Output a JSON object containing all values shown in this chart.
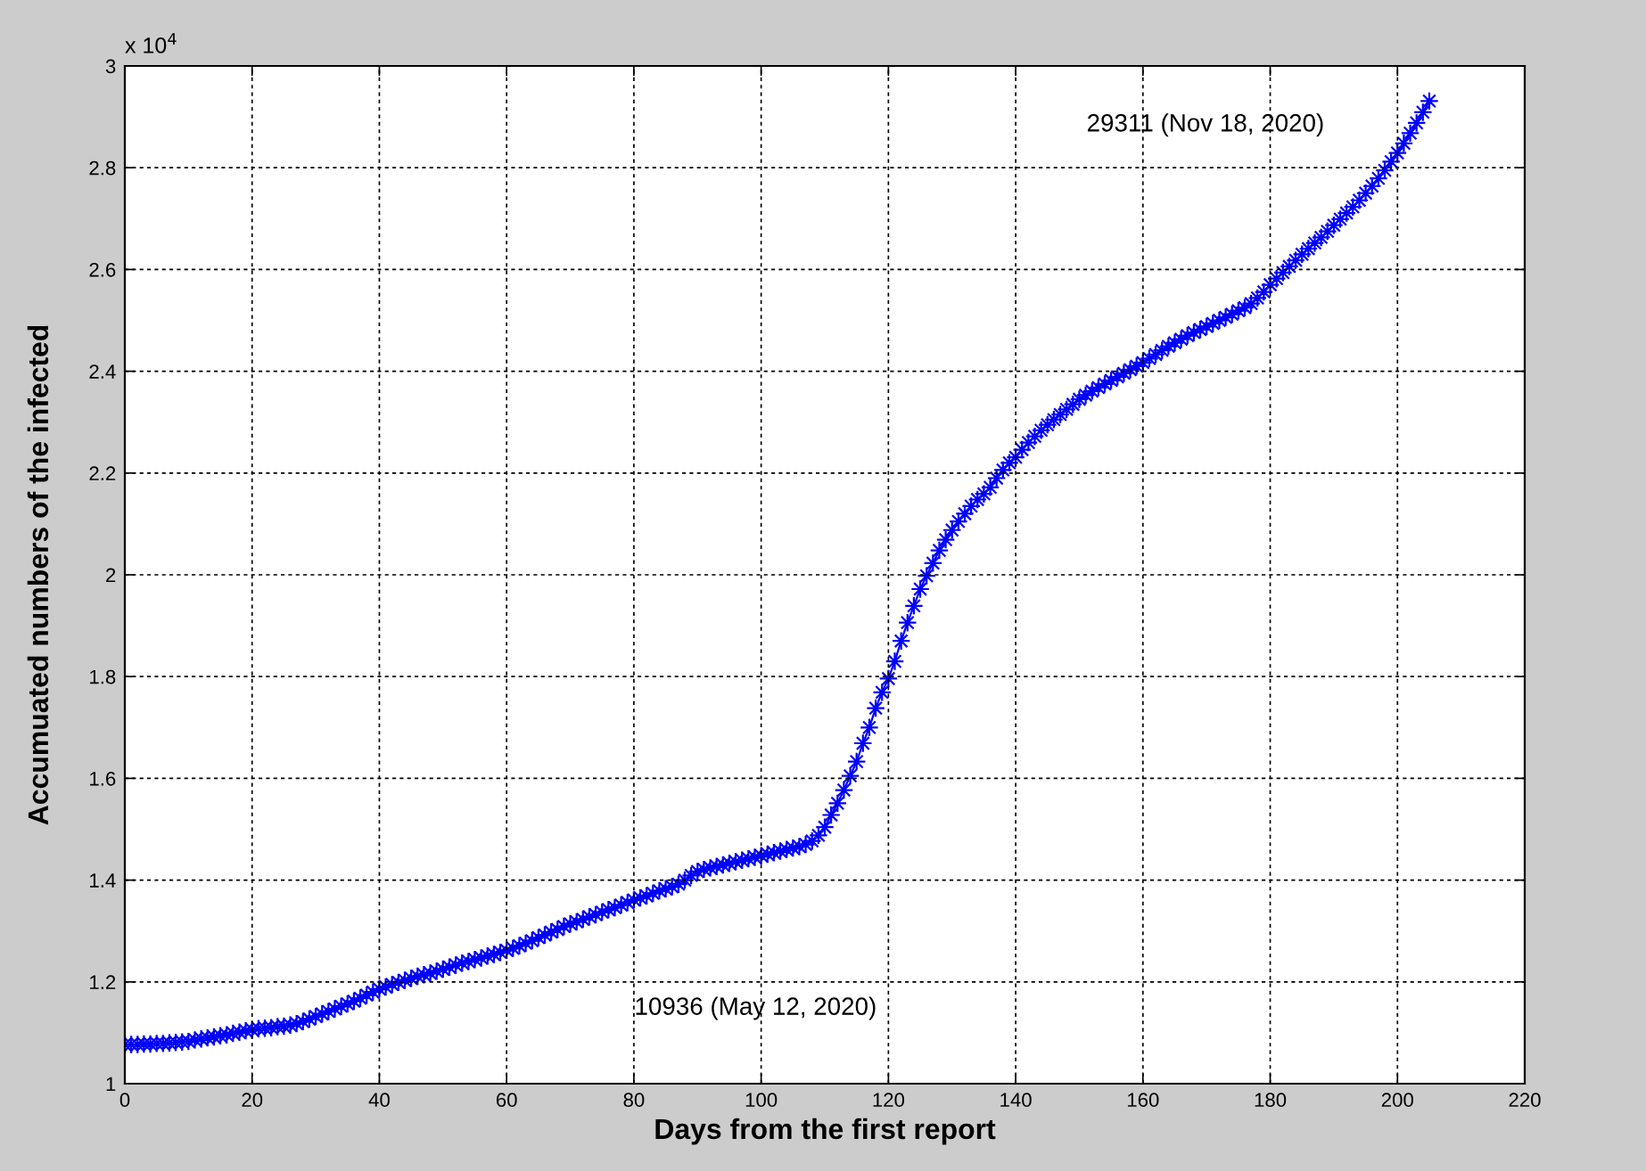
{
  "chart_data": {
    "type": "line",
    "xlabel": "Days from the first report",
    "ylabel": "Accumuated numbers of the infected",
    "annotations": [
      "x 10$^{4}$",
      "29311 (Nov 18, 2020)",
      "10936 (May 12, 2020)"
    ],
    "x": [
      0,
      1,
      2,
      3,
      4,
      5,
      6,
      7,
      8,
      9,
      10,
      11,
      12,
      13,
      14,
      15,
      16,
      17,
      18,
      19,
      20,
      21,
      22,
      23,
      24,
      25,
      26,
      27,
      28,
      29,
      30,
      31,
      32,
      33,
      34,
      35,
      36,
      37,
      38,
      39,
      40,
      41,
      42,
      43,
      44,
      45,
      46,
      47,
      48,
      49,
      50,
      51,
      52,
      53,
      54,
      55,
      56,
      57,
      58,
      59,
      60,
      61,
      62,
      63,
      64,
      65,
      66,
      67,
      68,
      69,
      70,
      71,
      72,
      73,
      74,
      75,
      76,
      77,
      78,
      79,
      80,
      81,
      82,
      83,
      84,
      85,
      86,
      87,
      88,
      89,
      90,
      91,
      92,
      93,
      94,
      95,
      96,
      97,
      98,
      99,
      100,
      101,
      102,
      103,
      104,
      105,
      106,
      107,
      108,
      109,
      110,
      111,
      112,
      113,
      114,
      115,
      116,
      117,
      118,
      119,
      120,
      121,
      122,
      123,
      124,
      125,
      126,
      127,
      128,
      129,
      130,
      131,
      132,
      133,
      134,
      135,
      136,
      137,
      138,
      139,
      140,
      141,
      142,
      143,
      144,
      145,
      146,
      147,
      148,
      149,
      150,
      151,
      152,
      153,
      154,
      155,
      156,
      157,
      158,
      159,
      160,
      161,
      162,
      163,
      164,
      165,
      166,
      167,
      168,
      169,
      170,
      171,
      172,
      173,
      174,
      175,
      176,
      177,
      178,
      179,
      180,
      181,
      182,
      183,
      184,
      185,
      186,
      187,
      188,
      189,
      190,
      191,
      192,
      193,
      194,
      195,
      196,
      197,
      198,
      199,
      200,
      201,
      202,
      203,
      204,
      205
    ],
    "series": [
      {
        "color": "#0000ff",
        "values": [
          1.077,
          1.077,
          1.077,
          1.078,
          1.078,
          1.079,
          1.079,
          1.08,
          1.081,
          1.082,
          1.083,
          1.086,
          1.088,
          1.09,
          1.092,
          1.094,
          1.096,
          1.099,
          1.101,
          1.104,
          1.106,
          1.108,
          1.109,
          1.11,
          1.112,
          1.113,
          1.115,
          1.118,
          1.122,
          1.127,
          1.132,
          1.137,
          1.142,
          1.147,
          1.152,
          1.157,
          1.162,
          1.168,
          1.174,
          1.18,
          1.186,
          1.19,
          1.195,
          1.199,
          1.203,
          1.207,
          1.211,
          1.214,
          1.217,
          1.221,
          1.225,
          1.229,
          1.233,
          1.237,
          1.24,
          1.244,
          1.247,
          1.251,
          1.254,
          1.258,
          1.262,
          1.266,
          1.271,
          1.276,
          1.281,
          1.287,
          1.292,
          1.298,
          1.303,
          1.309,
          1.314,
          1.318,
          1.323,
          1.328,
          1.332,
          1.337,
          1.342,
          1.346,
          1.351,
          1.356,
          1.361,
          1.365,
          1.369,
          1.374,
          1.379,
          1.383,
          1.387,
          1.392,
          1.4,
          1.409,
          1.417,
          1.421,
          1.424,
          1.427,
          1.43,
          1.433,
          1.436,
          1.439,
          1.442,
          1.445,
          1.448,
          1.451,
          1.454,
          1.457,
          1.46,
          1.463,
          1.466,
          1.47,
          1.477,
          1.488,
          1.504,
          1.528,
          1.551,
          1.577,
          1.605,
          1.633,
          1.669,
          1.7,
          1.738,
          1.769,
          1.796,
          1.83,
          1.87,
          1.906,
          1.939,
          1.972,
          1.998,
          2.023,
          2.048,
          2.069,
          2.088,
          2.105,
          2.12,
          2.135,
          2.148,
          2.159,
          2.172,
          2.19,
          2.206,
          2.22,
          2.231,
          2.246,
          2.26,
          2.272,
          2.284,
          2.295,
          2.305,
          2.315,
          2.325,
          2.335,
          2.345,
          2.353,
          2.361,
          2.368,
          2.375,
          2.382,
          2.389,
          2.396,
          2.403,
          2.41,
          2.417,
          2.425,
          2.433,
          2.441,
          2.449,
          2.456,
          2.463,
          2.47,
          2.476,
          2.482,
          2.488,
          2.494,
          2.5,
          2.506,
          2.512,
          2.519,
          2.525,
          2.533,
          2.544,
          2.556,
          2.57,
          2.582,
          2.594,
          2.606,
          2.618,
          2.63,
          2.641,
          2.652,
          2.663,
          2.675,
          2.687,
          2.699,
          2.711,
          2.723,
          2.736,
          2.75,
          2.764,
          2.779,
          2.795,
          2.812,
          2.829,
          2.848,
          2.868,
          2.888,
          2.909,
          2.931
        ]
      }
    ],
    "xlim": [
      0,
      220
    ],
    "xticks": [
      0,
      20,
      40,
      60,
      80,
      100,
      120,
      140,
      160,
      180,
      200,
      220
    ],
    "ylim": [
      1,
      3
    ],
    "yticks": [
      1,
      1.2,
      1.4,
      1.6,
      1.8,
      2,
      2.2,
      2.4,
      2.6,
      2.8,
      3
    ],
    "grid": true,
    "marker": "star",
    "line_style": "solid"
  }
}
